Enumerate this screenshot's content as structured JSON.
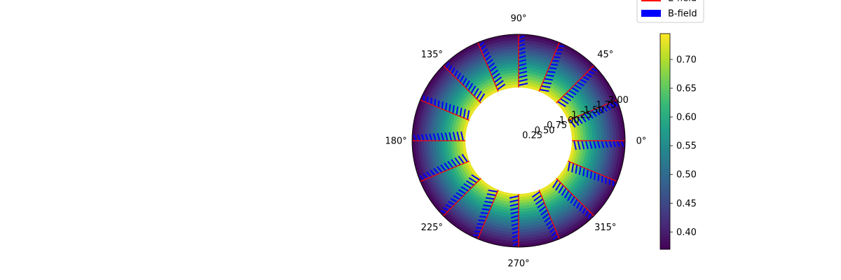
{
  "chart_data": {
    "type": "polar",
    "title": "",
    "angular_ticks": [
      "0°",
      "45°",
      "90°",
      "135°",
      "180°",
      "225°",
      "270°",
      "315°"
    ],
    "angular_tick_values": [
      0,
      45,
      90,
      135,
      180,
      225,
      270,
      315
    ],
    "radial_ticks": [
      "0.25",
      "0.50",
      "0.75",
      "1.00",
      "1.25",
      "1.50",
      "1.75",
      "2.00"
    ],
    "radial_tick_values": [
      0.25,
      0.5,
      0.75,
      1.0,
      1.25,
      1.5,
      1.75,
      2.0
    ],
    "radial_lim": [
      0,
      2.0
    ],
    "heatmap": {
      "r_range": [
        1.0,
        2.0
      ],
      "min": 0.37,
      "max": 0.75,
      "colormap": "viridis"
    },
    "vector_angles_deg": [
      0,
      22.5,
      45,
      67.5,
      90,
      112.5,
      135,
      157.5,
      180,
      202.5,
      225,
      247.5,
      270,
      292.5,
      315,
      337.5
    ],
    "series": [
      {
        "name": "E-field",
        "color": "#ff0000",
        "r_start": 1.0,
        "r_end": 2.0
      },
      {
        "name": "B-field",
        "color": "#0000ff",
        "r_start": 1.0,
        "r_end": 2.0
      }
    ],
    "colorbar": {
      "ticks": [
        "0.40",
        "0.45",
        "0.50",
        "0.55",
        "0.60",
        "0.65",
        "0.70"
      ],
      "tick_values": [
        0.4,
        0.45,
        0.5,
        0.55,
        0.6,
        0.65,
        0.7
      ],
      "min": 0.37,
      "max": 0.745
    },
    "legend": {
      "placement": "top-right",
      "entries": [
        "E-field",
        "B-field"
      ]
    },
    "grid": false
  }
}
